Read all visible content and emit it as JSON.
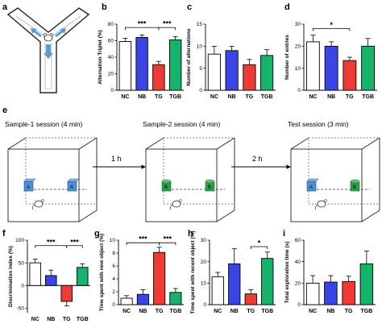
{
  "panels": {
    "a": "a",
    "b": "b",
    "c": "c",
    "d": "d",
    "e": "e",
    "f": "f",
    "g": "g",
    "h": "h",
    "i": "i"
  },
  "colors": {
    "NC": "#ffffff",
    "NB": "#3b45e6",
    "TG": "#ef3b36",
    "TGB": "#16b36a",
    "block_a": "#4f8ed3",
    "block_b": "#2e9e4a",
    "arrow": "#5b9bd5"
  },
  "maze": {
    "arm_labels": []
  },
  "session": {
    "sample1": "Sample-1 session (4 min)",
    "sample2": "Sample-2 session (4 min)",
    "test": "Test session (3 min)",
    "interval1": "1 h",
    "interval2": "2 h",
    "obj_a": "A",
    "obj_b": "B"
  },
  "chart_data": [
    {
      "id": "b",
      "type": "bar",
      "categories": [
        "NC",
        "NB",
        "TG",
        "TGB"
      ],
      "values": [
        59,
        64,
        31,
        61
      ],
      "errors": [
        4,
        3,
        4,
        4
      ],
      "ylabel": "Alternation Triplet (%)",
      "ylim": [
        0,
        80
      ],
      "yticks": [
        0,
        20,
        40,
        60,
        80
      ],
      "sig": [
        {
          "from": 0,
          "to": 2,
          "label": "***",
          "level": 76
        },
        {
          "from": 2,
          "to": 3,
          "label": "***",
          "level": 76
        }
      ]
    },
    {
      "id": "c",
      "type": "bar",
      "categories": [
        "NC",
        "NB",
        "TG",
        "TGB"
      ],
      "values": [
        8.2,
        9.0,
        5.8,
        7.9
      ],
      "errors": [
        1.8,
        1.0,
        1.2,
        1.3
      ],
      "ylabel": "Number of alternations",
      "ylim": [
        0,
        15
      ],
      "yticks": [
        0,
        5,
        10,
        15
      ],
      "sig": []
    },
    {
      "id": "d",
      "type": "bar",
      "categories": [
        "NC",
        "NB",
        "TG",
        "TGB"
      ],
      "values": [
        22,
        20,
        13.5,
        20
      ],
      "errors": [
        3,
        2,
        1.5,
        3.5
      ],
      "ylabel": "Number of entries",
      "ylim": [
        0,
        30
      ],
      "yticks": [
        0,
        10,
        20,
        30
      ],
      "sig": [
        {
          "from": 0,
          "to": 2,
          "label": "*",
          "level": 28
        }
      ]
    },
    {
      "id": "f",
      "type": "bar",
      "categories": [
        "NC",
        "NB",
        "TG",
        "TGB"
      ],
      "values": [
        50,
        22,
        -35,
        40
      ],
      "errors": [
        8,
        12,
        10,
        8
      ],
      "ylabel": "Discrimination index (%)",
      "ylim": [
        -60,
        100
      ],
      "yticks": [
        -50,
        0,
        50,
        100
      ],
      "sig": [
        {
          "from": 0,
          "to": 2,
          "label": "***",
          "level": 88
        },
        {
          "from": 2,
          "to": 3,
          "label": "***",
          "level": 88
        }
      ]
    },
    {
      "id": "g",
      "type": "bar",
      "categories": [
        "NC",
        "NB",
        "TG",
        "TGB"
      ],
      "values": [
        1.0,
        1.6,
        8.1,
        1.9
      ],
      "errors": [
        0.4,
        0.7,
        0.8,
        0.6
      ],
      "ylabel": "Time spent with new object (%)",
      "ylim": [
        0,
        10
      ],
      "yticks": [
        0,
        2,
        4,
        6,
        8,
        10
      ],
      "sig": [
        {
          "from": 0,
          "to": 2,
          "label": "***",
          "level": 9.6
        },
        {
          "from": 2,
          "to": 3,
          "label": "***",
          "level": 9.6
        }
      ]
    },
    {
      "id": "h",
      "type": "bar",
      "categories": [
        "NC",
        "NB",
        "TG",
        "TGB"
      ],
      "values": [
        13,
        19,
        5,
        21.5
      ],
      "errors": [
        2,
        7,
        2,
        3
      ],
      "ylabel": "Time spent with recent object (%)",
      "ylim": [
        0,
        30
      ],
      "yticks": [
        0,
        10,
        20,
        30
      ],
      "sig": [
        {
          "from": 2,
          "to": 3,
          "label": "*",
          "level": 27
        }
      ]
    },
    {
      "id": "i",
      "type": "bar",
      "categories": [
        "NC",
        "NB",
        "TG",
        "TGB"
      ],
      "values": [
        20,
        21,
        21.5,
        38
      ],
      "errors": [
        7,
        6,
        5,
        12
      ],
      "ylabel": "Total exploration time (s)",
      "ylim": [
        0,
        60
      ],
      "yticks": [
        0,
        20,
        40,
        60
      ],
      "sig": []
    }
  ]
}
